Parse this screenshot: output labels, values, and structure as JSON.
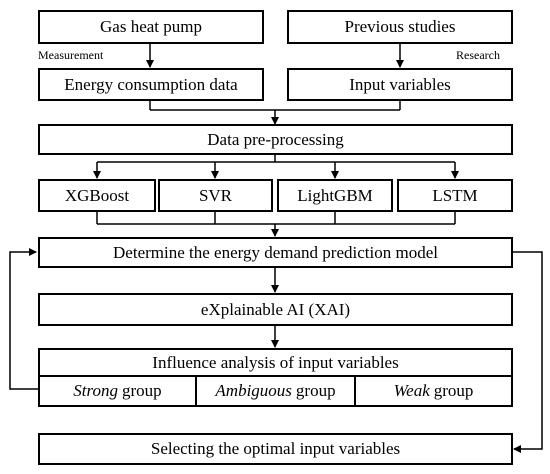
{
  "boxes": {
    "gas_heat_pump": "Gas heat pump",
    "previous_studies": "Previous studies",
    "energy_consumption_data": "Energy consumption data",
    "input_variables": "Input variables",
    "data_preprocessing": "Data pre-processing",
    "xgboost": "XGBoost",
    "svr": "SVR",
    "lightgbm": "LightGBM",
    "lstm": "LSTM",
    "determine_model": "Determine the energy demand prediction model",
    "xai": "eXplainable AI (XAI)",
    "influence_analysis": "Influence analysis of input variables",
    "selecting_optimal": "Selecting the optimal input variables"
  },
  "groups": [
    {
      "italic": "Strong",
      "rest": "group"
    },
    {
      "italic": "Ambiguous",
      "rest": "group"
    },
    {
      "italic": "Weak",
      "rest": "group"
    }
  ],
  "edge_labels": {
    "measurement": "Measurement",
    "research": "Research"
  }
}
